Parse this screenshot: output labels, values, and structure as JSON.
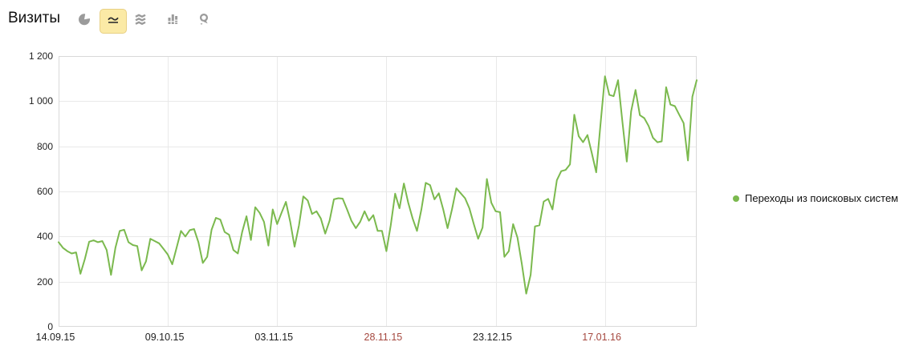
{
  "header": {
    "title": "Визиты"
  },
  "toolbar": {
    "icon_color": "#9b9b9b",
    "selected_bg": "#fbeaa6",
    "selected_border": "#e8d084",
    "buttons": [
      {
        "icon": "pie-chart-icon",
        "selected": false
      },
      {
        "icon": "line-chart-icon",
        "selected": true
      },
      {
        "icon": "stacked-area-icon",
        "selected": false
      },
      {
        "icon": "bar-chart-icon",
        "selected": false
      },
      {
        "icon": "map-pin-icon",
        "selected": false
      }
    ]
  },
  "legend": {
    "label": "Переходы из поисковых систем",
    "marker_color": "#7bb94e"
  },
  "chart_data": {
    "type": "line",
    "title": "Визиты",
    "grid": true,
    "legend_position": "right",
    "ylim": [
      0,
      1200
    ],
    "y_ticks": [
      0,
      200,
      400,
      600,
      800,
      1000,
      1200
    ],
    "y_tick_labels": [
      "0",
      "200",
      "400",
      "600",
      "800",
      "1 000",
      "1 200"
    ],
    "x_ticks": [
      {
        "label": "14.09.15",
        "day": 0,
        "weekend": false
      },
      {
        "label": "09.10.15",
        "day": 25,
        "weekend": false
      },
      {
        "label": "03.11.15",
        "day": 50,
        "weekend": false
      },
      {
        "label": "28.11.15",
        "day": 75,
        "weekend": true
      },
      {
        "label": "23.12.15",
        "day": 100,
        "weekend": false
      },
      {
        "label": "17.01.16",
        "day": 125,
        "weekend": true
      }
    ],
    "colors": {
      "line": "#7bb94e",
      "grid": "#e9e9e9",
      "border": "#d9d9d9",
      "axis_text": "#222222",
      "weekend_text": "#a5483f"
    },
    "series": [
      {
        "name": "Переходы из поисковых систем",
        "color": "#7bb94e",
        "values": [
          375,
          350,
          335,
          325,
          330,
          235,
          300,
          377,
          383,
          375,
          380,
          340,
          230,
          350,
          425,
          430,
          375,
          362,
          358,
          250,
          290,
          390,
          380,
          370,
          345,
          320,
          277,
          350,
          425,
          400,
          428,
          433,
          375,
          283,
          310,
          430,
          483,
          475,
          420,
          408,
          340,
          325,
          420,
          490,
          385,
          530,
          505,
          465,
          360,
          520,
          455,
          505,
          554,
          465,
          355,
          450,
          578,
          560,
          500,
          512,
          480,
          413,
          470,
          565,
          570,
          568,
          520,
          470,
          437,
          465,
          512,
          470,
          495,
          425,
          425,
          335,
          450,
          590,
          525,
          635,
          550,
          480,
          425,
          520,
          638,
          628,
          565,
          592,
          520,
          437,
          520,
          614,
          592,
          570,
          525,
          455,
          390,
          440,
          655,
          550,
          512,
          508,
          310,
          335,
          455,
          395,
          277,
          147,
          230,
          445,
          450,
          555,
          567,
          520,
          650,
          690,
          695,
          720,
          940,
          845,
          818,
          850,
          770,
          685,
          900,
          1110,
          1028,
          1022,
          1093,
          910,
          732,
          955,
          1050,
          938,
          925,
          890,
          838,
          818,
          822,
          1062,
          985,
          978,
          940,
          903,
          737,
          1020,
          1093
        ]
      }
    ]
  }
}
